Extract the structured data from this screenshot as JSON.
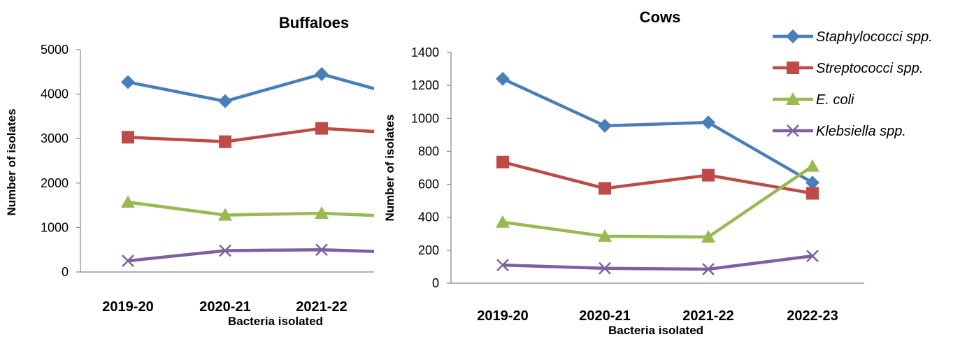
{
  "chart_data": [
    {
      "type": "line",
      "title": "Buffaloes",
      "xlabel": "Bacteria isolated",
      "ylabel": "Number of isolates",
      "categories": [
        "2019-20",
        "2020-21",
        "2021-22"
      ],
      "ylim": [
        0,
        5000
      ],
      "yticks": [
        0,
        1000,
        2000,
        3000,
        4000,
        5000
      ],
      "grid": false,
      "series": [
        {
          "name": "Staphylococci spp.",
          "values": [
            4270,
            3840,
            4450
          ],
          "color": "#4a7ebb",
          "marker": "diamond"
        },
        {
          "name": "Streptococci spp.",
          "values": [
            3030,
            2930,
            3230
          ],
          "color": "#be4b48",
          "marker": "square"
        },
        {
          "name": "E. coli",
          "values": [
            1570,
            1280,
            1320
          ],
          "color": "#98b954",
          "marker": "triangle"
        },
        {
          "name": "Klebsiella spp.",
          "values": [
            250,
            480,
            500
          ],
          "color": "#7d60a0",
          "marker": "x"
        }
      ]
    },
    {
      "type": "line",
      "title": "Cows",
      "xlabel": "Bacteria isolated",
      "ylabel": "Number of isolates",
      "categories": [
        "2019-20",
        "2020-21",
        "2021-22",
        "2022-23"
      ],
      "ylim": [
        0,
        1400
      ],
      "yticks": [
        0,
        200,
        400,
        600,
        800,
        1000,
        1200,
        1400
      ],
      "grid": false,
      "legend": "top-right",
      "series": [
        {
          "name": "Staphylococci spp.",
          "values": [
            1240,
            955,
            975,
            610
          ],
          "color": "#4a7ebb",
          "marker": "diamond"
        },
        {
          "name": "Streptococci spp.",
          "values": [
            735,
            575,
            655,
            545
          ],
          "color": "#be4b48",
          "marker": "square"
        },
        {
          "name": "E. coli",
          "values": [
            370,
            285,
            280,
            710
          ],
          "color": "#98b954",
          "marker": "triangle"
        },
        {
          "name": "Klebsiella spp.",
          "values": [
            110,
            90,
            85,
            165
          ],
          "color": "#7d60a0",
          "marker": "x"
        }
      ]
    }
  ]
}
